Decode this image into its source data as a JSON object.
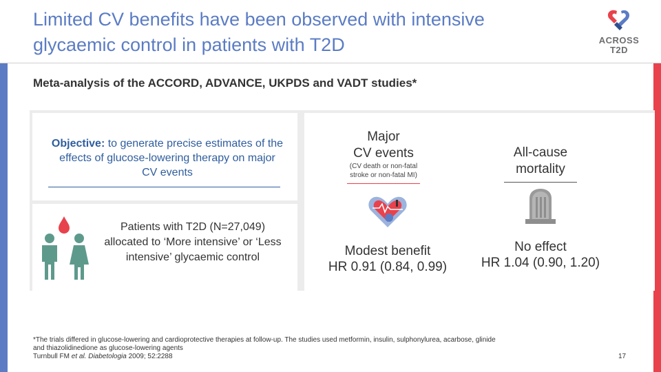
{
  "slide": {
    "title_line1": "Limited CV benefits have been observed with intensive",
    "title_line2": "glycaemic control in patients with T2D",
    "subtitle": "Meta-analysis of the ACCORD, ADVANCE, UKPDS and VADT studies*",
    "page_number": "17"
  },
  "logo": {
    "line1": "ACROSS",
    "line2": "T2D"
  },
  "objective": {
    "label": "Objective:",
    "text": " to generate precise estimates of the effects of glucose-lowering therapy on major CV events"
  },
  "patients": {
    "text": "Patients with T2D (N=27,049) allocated to ‘More intensive’ or ‘Less intensive’ glycaemic control"
  },
  "results": {
    "major_cv": {
      "heading_line1": "Major",
      "heading_line2": "CV events",
      "note_line1": "(CV death or non-fatal",
      "note_line2": "stroke or non-fatal MI)",
      "result_line1": "Modest benefit",
      "result_line2": "HR 0.91 (0.84, 0.99)"
    },
    "all_cause": {
      "heading_line1": "All-cause",
      "heading_line2": "mortality",
      "result_line1": "No effect",
      "result_line2": "HR 1.04 (0.90, 1.20)"
    }
  },
  "footnote": {
    "line1": "*The trials differed in glucose-lowering and cardioprotective therapies at follow-up. The studies used metformin, insulin, sulphonylurea, acarbose, glinide",
    "line2": "and thiazolidinedione as glucose-lowering agents",
    "ref_author": "Turnbull FM ",
    "ref_etal": "et al. Diabetologia",
    "ref_rest": " 2009; 52:2288"
  },
  "colors": {
    "accent_blue": "#5b7cc4",
    "accent_red": "#e8424c",
    "text_blue": "#2f5d9e"
  }
}
